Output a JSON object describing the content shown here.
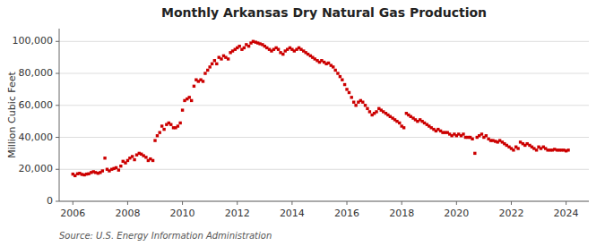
{
  "chart_data": {
    "type": "scatter",
    "title": "Monthly Arkansas Dry Natural Gas Production",
    "y_label": "Million Cubic Feet",
    "source": "Source: U.S. Energy Information Administration",
    "color": "#CC0000",
    "marker": "square",
    "grid": true,
    "xlim": [
      2005.5,
      2024.83
    ],
    "ylim": [
      0,
      108000
    ],
    "xticks": [
      2006,
      2008,
      2010,
      2012,
      2014,
      2016,
      2018,
      2020,
      2022,
      2024
    ],
    "yticks": [
      0,
      {
        "value": 20000,
        "label": "20,000"
      },
      {
        "value": 40000,
        "label": "40,000"
      },
      {
        "value": 60000,
        "label": "60,000"
      },
      {
        "value": 80000,
        "label": "80,000"
      },
      {
        "value": 100000,
        "label": "100,000"
      }
    ],
    "x": [
      2006.0,
      2006.08,
      2006.17,
      2006.25,
      2006.33,
      2006.42,
      2006.5,
      2006.58,
      2006.67,
      2006.75,
      2006.83,
      2006.92,
      2007.0,
      2007.08,
      2007.17,
      2007.25,
      2007.33,
      2007.42,
      2007.5,
      2007.58,
      2007.67,
      2007.75,
      2007.83,
      2007.92,
      2008.0,
      2008.08,
      2008.17,
      2008.25,
      2008.33,
      2008.42,
      2008.5,
      2008.58,
      2008.67,
      2008.75,
      2008.83,
      2008.92,
      2009.0,
      2009.08,
      2009.17,
      2009.25,
      2009.33,
      2009.42,
      2009.5,
      2009.58,
      2009.67,
      2009.75,
      2009.83,
      2009.92,
      2010.0,
      2010.08,
      2010.17,
      2010.25,
      2010.33,
      2010.42,
      2010.5,
      2010.58,
      2010.67,
      2010.75,
      2010.83,
      2010.92,
      2011.0,
      2011.08,
      2011.17,
      2011.25,
      2011.33,
      2011.42,
      2011.5,
      2011.58,
      2011.67,
      2011.75,
      2011.83,
      2011.92,
      2012.0,
      2012.08,
      2012.17,
      2012.25,
      2012.33,
      2012.42,
      2012.5,
      2012.58,
      2012.67,
      2012.75,
      2012.83,
      2012.92,
      2013.0,
      2013.08,
      2013.17,
      2013.25,
      2013.33,
      2013.42,
      2013.5,
      2013.58,
      2013.67,
      2013.75,
      2013.83,
      2013.92,
      2014.0,
      2014.08,
      2014.17,
      2014.25,
      2014.33,
      2014.42,
      2014.5,
      2014.58,
      2014.67,
      2014.75,
      2014.83,
      2014.92,
      2015.0,
      2015.08,
      2015.17,
      2015.25,
      2015.33,
      2015.42,
      2015.5,
      2015.58,
      2015.67,
      2015.75,
      2015.83,
      2015.92,
      2016.0,
      2016.08,
      2016.17,
      2016.25,
      2016.33,
      2016.42,
      2016.5,
      2016.58,
      2016.67,
      2016.75,
      2016.83,
      2016.92,
      2017.0,
      2017.08,
      2017.17,
      2017.25,
      2017.33,
      2017.42,
      2017.5,
      2017.58,
      2017.67,
      2017.75,
      2017.83,
      2017.92,
      2018.0,
      2018.08,
      2018.17,
      2018.25,
      2018.33,
      2018.42,
      2018.5,
      2018.58,
      2018.67,
      2018.75,
      2018.83,
      2018.92,
      2019.0,
      2019.08,
      2019.17,
      2019.25,
      2019.33,
      2019.42,
      2019.5,
      2019.58,
      2019.67,
      2019.75,
      2019.83,
      2019.92,
      2020.0,
      2020.08,
      2020.17,
      2020.25,
      2020.33,
      2020.42,
      2020.5,
      2020.58,
      2020.67,
      2020.75,
      2020.83,
      2020.92,
      2021.0,
      2021.08,
      2021.17,
      2021.25,
      2021.33,
      2021.42,
      2021.5,
      2021.58,
      2021.67,
      2021.75,
      2021.83,
      2021.92,
      2022.0,
      2022.08,
      2022.17,
      2022.25,
      2022.33,
      2022.42,
      2022.5,
      2022.58,
      2022.67,
      2022.75,
      2022.83,
      2022.92,
      2023.0,
      2023.08,
      2023.17,
      2023.25,
      2023.33,
      2023.42,
      2023.5,
      2023.58,
      2023.67,
      2023.75,
      2023.83,
      2023.92,
      2024.0,
      2024.08
    ],
    "values": [
      17000,
      16000,
      17200,
      17500,
      16800,
      16500,
      17000,
      17200,
      18000,
      18500,
      18000,
      17500,
      18000,
      19000,
      27000,
      20000,
      19000,
      20000,
      20500,
      21000,
      19500,
      22000,
      25000,
      24000,
      25500,
      27000,
      28000,
      26000,
      29000,
      30000,
      29500,
      28500,
      27500,
      25500,
      26500,
      25500,
      38000,
      41000,
      43000,
      47000,
      45000,
      48000,
      49000,
      48000,
      46000,
      46000,
      47000,
      49000,
      57000,
      63000,
      64000,
      65000,
      63000,
      72000,
      76000,
      75000,
      76000,
      75000,
      80000,
      82000,
      84000,
      86000,
      88000,
      86000,
      90000,
      89000,
      91000,
      90000,
      89000,
      93000,
      94000,
      95000,
      96000,
      97000,
      95000,
      96000,
      98000,
      97000,
      99000,
      100000,
      99500,
      99000,
      98500,
      98000,
      97000,
      96000,
      95000,
      94000,
      95000,
      96000,
      95000,
      93000,
      92000,
      94000,
      95000,
      96000,
      95000,
      94000,
      95000,
      96000,
      95000,
      94000,
      93000,
      92000,
      91000,
      90000,
      89000,
      88000,
      87000,
      88000,
      87000,
      86000,
      86500,
      85000,
      84000,
      82000,
      80000,
      78000,
      76000,
      73000,
      70000,
      68000,
      65000,
      62000,
      60000,
      62000,
      63000,
      62000,
      60000,
      58000,
      56000,
      54000,
      55000,
      56000,
      58000,
      57000,
      56000,
      55000,
      54000,
      53000,
      52000,
      51000,
      50000,
      49000,
      47000,
      46000,
      55000,
      54000,
      53000,
      52000,
      51000,
      50000,
      51000,
      50000,
      49000,
      48000,
      47000,
      46000,
      45000,
      44000,
      45000,
      44000,
      43000,
      43000,
      43000,
      42000,
      41000,
      42000,
      41000,
      42000,
      41000,
      42000,
      40000,
      40000,
      40000,
      39000,
      30000,
      40000,
      41000,
      42000,
      40000,
      41000,
      39000,
      38000,
      38000,
      37500,
      37000,
      38000,
      37000,
      36000,
      35000,
      34000,
      33000,
      32000,
      34000,
      33000,
      37000,
      36000,
      35000,
      36000,
      35000,
      34000,
      33000,
      32000,
      34000,
      33000,
      34000,
      33000,
      32000,
      32000,
      32000,
      32500,
      32000,
      32000,
      32000,
      32000,
      31500,
      32000
    ]
  }
}
